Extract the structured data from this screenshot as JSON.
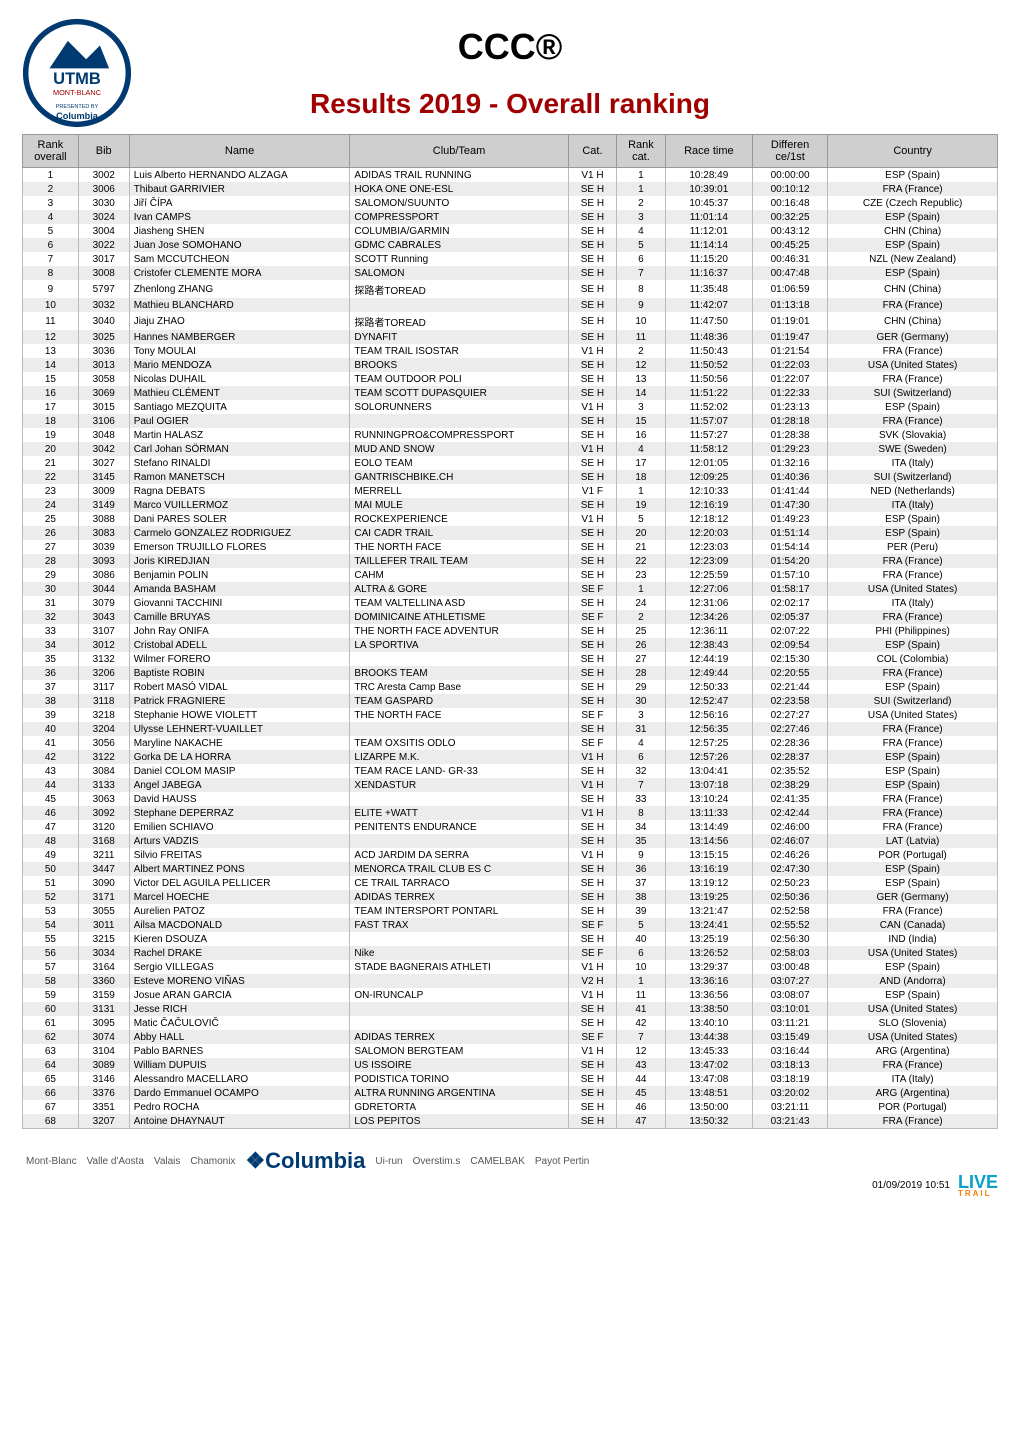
{
  "race_title": "CCC®",
  "subtitle": "Results 2019 - Overall ranking",
  "colors": {
    "title": "#000000",
    "subtitle": "#a00000",
    "header_bg": "#cfcfcf",
    "row_even": "#ececec",
    "row_odd": "#ffffff",
    "border": "#bbbbbb"
  },
  "logo": {
    "alt": "UTMB Mont-Blanc presented by Columbia",
    "top_text": "UTMB",
    "mid_text": "MONT-BLANC",
    "presented": "PRESENTED BY",
    "sponsor": "Columbia"
  },
  "columns": [
    "Rank overall",
    "Bib",
    "Name",
    "Club/Team",
    "Cat.",
    "Rank cat.",
    "Race time",
    "Differen ce/1st",
    "Country"
  ],
  "rows": [
    [
      1,
      3002,
      "Luis Alberto HERNANDO ALZAGA",
      "ADIDAS TRAIL RUNNING",
      "V1 H",
      1,
      "10:28:49",
      "00:00:00",
      "ESP (Spain)"
    ],
    [
      2,
      3006,
      "Thibaut GARRIVIER",
      "HOKA ONE ONE-ESL",
      "SE H",
      1,
      "10:39:01",
      "00:10:12",
      "FRA (France)"
    ],
    [
      3,
      3030,
      "Jiří ČÍPA",
      "SALOMON/SUUNTO",
      "SE H",
      2,
      "10:45:37",
      "00:16:48",
      "CZE (Czech Republic)"
    ],
    [
      4,
      3024,
      "Ivan CAMPS",
      "COMPRESSPORT",
      "SE H",
      3,
      "11:01:14",
      "00:32:25",
      "ESP (Spain)"
    ],
    [
      5,
      3004,
      "Jiasheng SHEN",
      "COLUMBIA/GARMIN",
      "SE H",
      4,
      "11:12:01",
      "00:43:12",
      "CHN (China)"
    ],
    [
      6,
      3022,
      "Juan Jose SOMOHANO",
      "GDMC CABRALES",
      "SE H",
      5,
      "11:14:14",
      "00:45:25",
      "ESP (Spain)"
    ],
    [
      7,
      3017,
      "Sam MCCUTCHEON",
      "SCOTT Running",
      "SE H",
      6,
      "11:15:20",
      "00:46:31",
      "NZL (New Zealand)"
    ],
    [
      8,
      3008,
      "Cristofer CLEMENTE MORA",
      "SALOMON",
      "SE H",
      7,
      "11:16:37",
      "00:47:48",
      "ESP (Spain)"
    ],
    [
      9,
      5797,
      "Zhenlong ZHANG",
      "探路者TOREAD",
      "SE H",
      8,
      "11:35:48",
      "01:06:59",
      "CHN (China)"
    ],
    [
      10,
      3032,
      "Mathieu BLANCHARD",
      "",
      "SE H",
      9,
      "11:42:07",
      "01:13:18",
      "FRA (France)"
    ],
    [
      11,
      3040,
      "Jiaju ZHAO",
      "探路者TOREAD",
      "SE H",
      10,
      "11:47:50",
      "01:19:01",
      "CHN (China)"
    ],
    [
      12,
      3025,
      "Hannes NAMBERGER",
      "DYNAFIT",
      "SE H",
      11,
      "11:48:36",
      "01:19:47",
      "GER (Germany)"
    ],
    [
      13,
      3036,
      "Tony MOULAI",
      "TEAM TRAIL ISOSTAR",
      "V1 H",
      2,
      "11:50:43",
      "01:21:54",
      "FRA (France)"
    ],
    [
      14,
      3013,
      "Mario MENDOZA",
      "BROOKS",
      "SE H",
      12,
      "11:50:52",
      "01:22:03",
      "USA (United States)"
    ],
    [
      15,
      3058,
      "Nicolas DUHAIL",
      "TEAM OUTDOOR POLI",
      "SE H",
      13,
      "11:50:56",
      "01:22:07",
      "FRA (France)"
    ],
    [
      16,
      3069,
      "Mathieu CLÉMENT",
      "TEAM SCOTT DUPASQUIER",
      "SE H",
      14,
      "11:51:22",
      "01:22:33",
      "SUI (Switzerland)"
    ],
    [
      17,
      3015,
      "Santiago MEZQUITA",
      "SOLORUNNERS",
      "V1 H",
      3,
      "11:52:02",
      "01:23:13",
      "ESP (Spain)"
    ],
    [
      18,
      3106,
      "Paul OGIER",
      "",
      "SE H",
      15,
      "11:57:07",
      "01:28:18",
      "FRA (France)"
    ],
    [
      19,
      3048,
      "Martin HALASZ",
      "RUNNINGPRO&COMPRESSPORT",
      "SE H",
      16,
      "11:57:27",
      "01:28:38",
      "SVK (Slovakia)"
    ],
    [
      20,
      3042,
      "Carl Johan SÖRMAN",
      "MUD AND SNOW",
      "V1 H",
      4,
      "11:58:12",
      "01:29:23",
      "SWE (Sweden)"
    ],
    [
      21,
      3027,
      "Stefano RINALDI",
      "EOLO TEAM",
      "SE H",
      17,
      "12:01:05",
      "01:32:16",
      "ITA (Italy)"
    ],
    [
      22,
      3145,
      "Ramon MANETSCH",
      "GANTRISCHBIKE.CH",
      "SE H",
      18,
      "12:09:25",
      "01:40:36",
      "SUI (Switzerland)"
    ],
    [
      23,
      3009,
      "Ragna DEBATS",
      "MERRELL",
      "V1 F",
      1,
      "12:10:33",
      "01:41:44",
      "NED (Netherlands)"
    ],
    [
      24,
      3149,
      "Marco VUILLERMOZ",
      "MAI MULE",
      "SE H",
      19,
      "12:16:19",
      "01:47:30",
      "ITA (Italy)"
    ],
    [
      25,
      3088,
      "Dani PARES SOLER",
      "ROCKEXPERIENCE",
      "V1 H",
      5,
      "12:18:12",
      "01:49:23",
      "ESP (Spain)"
    ],
    [
      26,
      3083,
      "Carmelo GONZALEZ RODRIGUEZ",
      "CAI CADR TRAIL",
      "SE H",
      20,
      "12:20:03",
      "01:51:14",
      "ESP (Spain)"
    ],
    [
      27,
      3039,
      "Emerson TRUJILLO FLORES",
      "THE NORTH FACE",
      "SE H",
      21,
      "12:23:03",
      "01:54:14",
      "PER (Peru)"
    ],
    [
      28,
      3093,
      "Joris KIREDJIAN",
      "TAILLEFER TRAIL TEAM",
      "SE H",
      22,
      "12:23:09",
      "01:54:20",
      "FRA (France)"
    ],
    [
      29,
      3086,
      "Benjamin POLIN",
      "CAHM",
      "SE H",
      23,
      "12:25:59",
      "01:57:10",
      "FRA (France)"
    ],
    [
      30,
      3044,
      "Amanda BASHAM",
      "ALTRA & GORE",
      "SE F",
      1,
      "12:27:06",
      "01:58:17",
      "USA (United States)"
    ],
    [
      31,
      3079,
      "Giovanni TACCHINI",
      "TEAM VALTELLINA ASD",
      "SE H",
      24,
      "12:31:06",
      "02:02:17",
      "ITA (Italy)"
    ],
    [
      32,
      3043,
      "Camille BRUYAS",
      "DOMINICAINE ATHLETISME",
      "SE F",
      2,
      "12:34:26",
      "02:05:37",
      "FRA (France)"
    ],
    [
      33,
      3107,
      "John Ray ONIFA",
      "THE NORTH FACE ADVENTUR",
      "SE H",
      25,
      "12:36:11",
      "02:07:22",
      "PHI (Philippines)"
    ],
    [
      34,
      3012,
      "Cristobal ADELL",
      "LA SPORTIVA",
      "SE H",
      26,
      "12:38:43",
      "02:09:54",
      "ESP (Spain)"
    ],
    [
      35,
      3132,
      "Wilmer FORERO",
      "",
      "SE H",
      27,
      "12:44:19",
      "02:15:30",
      "COL (Colombia)"
    ],
    [
      36,
      3206,
      "Baptiste ROBIN",
      "BROOKS TEAM",
      "SE H",
      28,
      "12:49:44",
      "02:20:55",
      "FRA (France)"
    ],
    [
      37,
      3117,
      "Robert MASÓ VIDAL",
      "TRC Aresta Camp Base",
      "SE H",
      29,
      "12:50:33",
      "02:21:44",
      "ESP (Spain)"
    ],
    [
      38,
      3118,
      "Patrick FRAGNIERE",
      "TEAM GASPARD",
      "SE H",
      30,
      "12:52:47",
      "02:23:58",
      "SUI (Switzerland)"
    ],
    [
      39,
      3218,
      "Stephanie HOWE VIOLETT",
      "THE NORTH FACE",
      "SE F",
      3,
      "12:56:16",
      "02:27:27",
      "USA (United States)"
    ],
    [
      40,
      3204,
      "Ulysse LEHNERT-VUAILLET",
      "",
      "SE H",
      31,
      "12:56:35",
      "02:27:46",
      "FRA (France)"
    ],
    [
      41,
      3056,
      "Maryline NAKACHE",
      "TEAM OXSITIS ODLO",
      "SE F",
      4,
      "12:57:25",
      "02:28:36",
      "FRA (France)"
    ],
    [
      42,
      3122,
      "Gorka DE LA HORRA",
      "LIZARPE M.K.",
      "V1 H",
      6,
      "12:57:26",
      "02:28:37",
      "ESP (Spain)"
    ],
    [
      43,
      3084,
      "Daniel COLOM MASIP",
      "TEAM RACE LAND- GR-33",
      "SE H",
      32,
      "13:04:41",
      "02:35:52",
      "ESP (Spain)"
    ],
    [
      44,
      3133,
      "Angel JABEGA",
      "XENDASTUR",
      "V1 H",
      7,
      "13:07:18",
      "02:38:29",
      "ESP (Spain)"
    ],
    [
      45,
      3063,
      "David HAUSS",
      "",
      "SE H",
      33,
      "13:10:24",
      "02:41:35",
      "FRA (France)"
    ],
    [
      46,
      3092,
      "Stephane DEPERRAZ",
      "ELITE +WATT",
      "V1 H",
      8,
      "13:11:33",
      "02:42:44",
      "FRA (France)"
    ],
    [
      47,
      3120,
      "Emilien SCHIAVO",
      "PENITENTS ENDURANCE",
      "SE H",
      34,
      "13:14:49",
      "02:46:00",
      "FRA (France)"
    ],
    [
      48,
      3168,
      "Arturs VADZIS",
      "",
      "SE H",
      35,
      "13:14:56",
      "02:46:07",
      "LAT (Latvia)"
    ],
    [
      49,
      3211,
      "Silvio FREITAS",
      "ACD JARDIM DA SERRA",
      "V1 H",
      9,
      "13:15:15",
      "02:46:26",
      "POR (Portugal)"
    ],
    [
      50,
      3447,
      "Albert MARTINEZ PONS",
      "MENORCA TRAIL CLUB ES C",
      "SE H",
      36,
      "13:16:19",
      "02:47:30",
      "ESP (Spain)"
    ],
    [
      51,
      3090,
      "Victor DEL AGUILA PELLICER",
      "CE TRAIL TARRACO",
      "SE H",
      37,
      "13:19:12",
      "02:50:23",
      "ESP (Spain)"
    ],
    [
      52,
      3171,
      "Marcel HOECHE",
      "ADIDAS TERREX",
      "SE H",
      38,
      "13:19:25",
      "02:50:36",
      "GER (Germany)"
    ],
    [
      53,
      3055,
      "Aurelien PATOZ",
      "TEAM INTERSPORT PONTARL",
      "SE H",
      39,
      "13:21:47",
      "02:52:58",
      "FRA (France)"
    ],
    [
      54,
      3011,
      "Ailsa MACDONALD",
      "FAST TRAX",
      "SE F",
      5,
      "13:24:41",
      "02:55:52",
      "CAN (Canada)"
    ],
    [
      55,
      3215,
      "Kieren DSOUZA",
      "",
      "SE H",
      40,
      "13:25:19",
      "02:56:30",
      "IND (India)"
    ],
    [
      56,
      3034,
      "Rachel DRAKE",
      "Nike",
      "SE F",
      6,
      "13:26:52",
      "02:58:03",
      "USA (United States)"
    ],
    [
      57,
      3164,
      "Sergio VILLEGAS",
      "STADE BAGNERAIS ATHLETI",
      "V1 H",
      10,
      "13:29:37",
      "03:00:48",
      "ESP (Spain)"
    ],
    [
      58,
      3360,
      "Esteve MORENO VIÑAS",
      "",
      "V2 H",
      1,
      "13:36:16",
      "03:07:27",
      "AND (Andorra)"
    ],
    [
      59,
      3159,
      "Josue ARAN GARCIA",
      "ON-IRUNCALP",
      "V1 H",
      11,
      "13:36:56",
      "03:08:07",
      "ESP (Spain)"
    ],
    [
      60,
      3131,
      "Jesse RICH",
      "",
      "SE H",
      41,
      "13:38:50",
      "03:10:01",
      "USA (United States)"
    ],
    [
      61,
      3095,
      "Matic ČAČULOVIČ",
      "",
      "SE H",
      42,
      "13:40:10",
      "03:11:21",
      "SLO (Slovenia)"
    ],
    [
      62,
      3074,
      "Abby HALL",
      "ADIDAS TERREX",
      "SE F",
      7,
      "13:44:38",
      "03:15:49",
      "USA (United States)"
    ],
    [
      63,
      3104,
      "Pablo BARNES",
      "SALOMON BERGTEAM",
      "V1 H",
      12,
      "13:45:33",
      "03:16:44",
      "ARG (Argentina)"
    ],
    [
      64,
      3089,
      "William DUPUIS",
      "US ISSOIRE",
      "SE H",
      43,
      "13:47:02",
      "03:18:13",
      "FRA (France)"
    ],
    [
      65,
      3146,
      "Alessandro MACELLARO",
      "PODISTICA TORINO",
      "SE H",
      44,
      "13:47:08",
      "03:18:19",
      "ITA (Italy)"
    ],
    [
      66,
      3376,
      "Dardo Emmanuel OCAMPO",
      "ALTRA RUNNING ARGENTINA",
      "SE H",
      45,
      "13:48:51",
      "03:20:02",
      "ARG (Argentina)"
    ],
    [
      67,
      3351,
      "Pedro ROCHA",
      "GDRETORTA",
      "SE H",
      46,
      "13:50:00",
      "03:21:11",
      "POR (Portugal)"
    ],
    [
      68,
      3207,
      "Antoine DHAYNAUT",
      "LOS PEPITOS",
      "SE H",
      47,
      "13:50:32",
      "03:21:43",
      "FRA (France)"
    ]
  ],
  "footer": {
    "sponsors": [
      "Mont-Blanc",
      "Valle d'Aosta",
      "Valais",
      "Chamonix",
      "Columbia",
      "Ui-run",
      "Overstim.s",
      "CAMELBAK",
      "Payot Pertin"
    ],
    "timestamp": "01/09/2019 10:51",
    "live_brand": "LIVE",
    "live_sub": "TRAIL"
  }
}
